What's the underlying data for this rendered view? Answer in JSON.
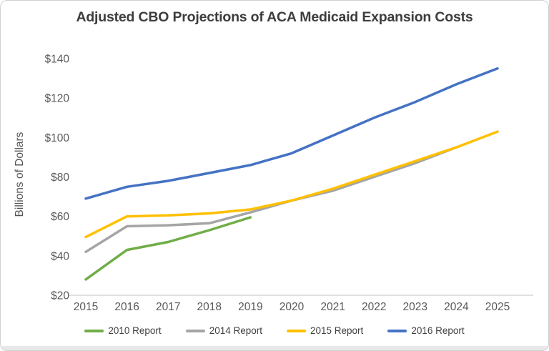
{
  "chart_data": {
    "type": "line",
    "title": "Adjusted CBO Projections of ACA Medicaid Expansion Costs",
    "ylabel": "Billions of Dollars",
    "xlabel": "",
    "grid": false,
    "legend_position": "bottom",
    "ylim": [
      20,
      140
    ],
    "y_tick_values": [
      20,
      40,
      60,
      80,
      100,
      120,
      140
    ],
    "y_tick_labels": [
      "$20",
      "$40",
      "$60",
      "$80",
      "$100",
      "$120",
      "$140"
    ],
    "x": [
      2015,
      2016,
      2017,
      2018,
      2019,
      2020,
      2021,
      2022,
      2023,
      2024,
      2025
    ],
    "x_tick_labels": [
      "2015",
      "2016",
      "2017",
      "2018",
      "2019",
      "2020",
      "2021",
      "2022",
      "2023",
      "2024",
      "2025"
    ],
    "axis_color": "#d6d6d6",
    "series": [
      {
        "name": "2010 Report",
        "color": "#70AD47",
        "values": [
          28,
          43,
          47,
          53,
          59.5,
          null,
          null,
          null,
          null,
          null,
          null
        ]
      },
      {
        "name": "2014 Report",
        "color": "#A5A5A5",
        "values": [
          42,
          55,
          55.5,
          56.5,
          62,
          68,
          73,
          80,
          87,
          95,
          null
        ]
      },
      {
        "name": "2015 Report",
        "color": "#FFC000",
        "values": [
          49.5,
          60,
          60.5,
          61.5,
          63.5,
          68,
          74,
          81,
          88,
          95,
          103
        ]
      },
      {
        "name": "2016 Report",
        "color": "#4472C4",
        "values": [
          69,
          75,
          78,
          82,
          86,
          92,
          101,
          110,
          118,
          127,
          135
        ]
      }
    ]
  }
}
